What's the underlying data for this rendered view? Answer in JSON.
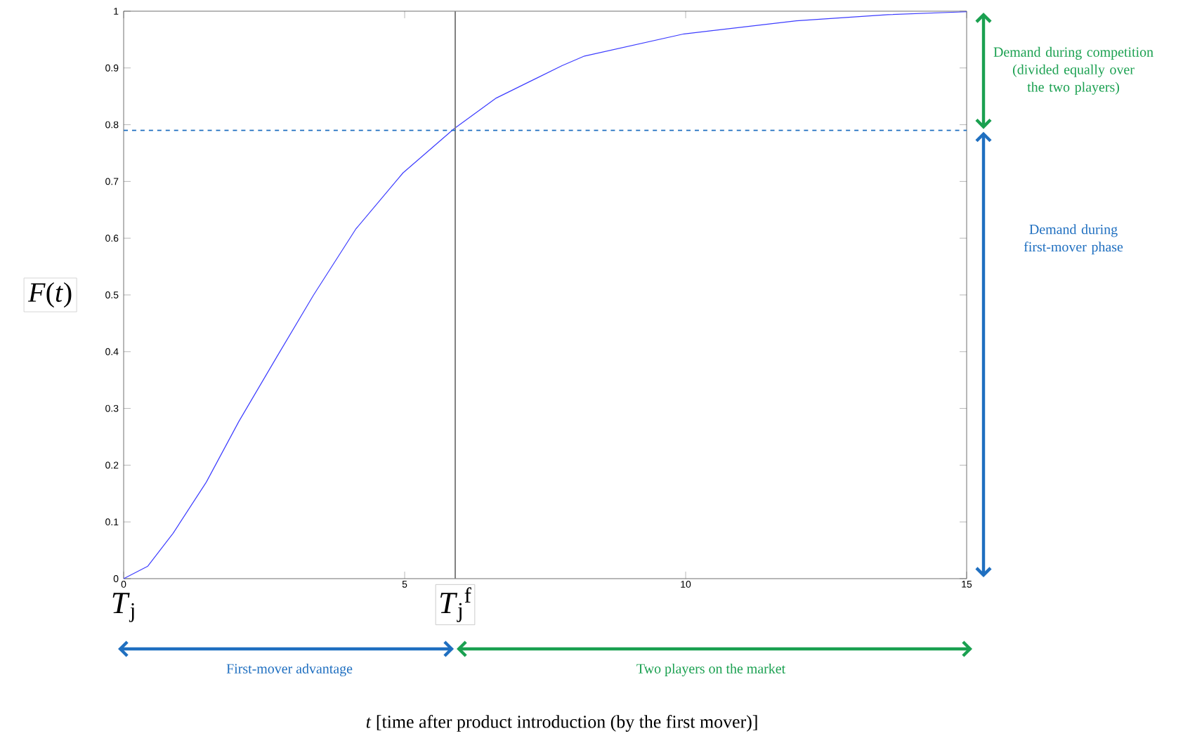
{
  "chart_data": {
    "type": "line",
    "ylabel": "*F*(*t*)",
    "x": [
      0,
      0.43,
      0.88,
      1.47,
      2.05,
      2.72,
      3.38,
      4.13,
      4.97,
      5.88,
      6.63,
      7.8,
      8.2,
      9.97,
      11.97,
      13.6,
      15
    ],
    "series": [
      {
        "color": "#3c3cff",
        "values": [
          0,
          0.022,
          0.08,
          0.17,
          0.277,
          0.39,
          0.5,
          0.616,
          0.715,
          0.793,
          0.847,
          0.904,
          0.921,
          0.96,
          0.983,
          0.994,
          0.999
        ]
      }
    ],
    "xlim": [
      0,
      15
    ],
    "ylim": [
      0,
      1
    ],
    "xticks": [
      0,
      5,
      10,
      15
    ],
    "yticks": [
      0,
      0.1,
      0.2,
      0.3,
      0.4,
      0.5,
      0.6,
      0.7,
      0.8,
      0.9,
      1
    ],
    "ref_lines": [
      {
        "axis": "x",
        "value": 5.9,
        "label": "*T*$_{j}$$^{f}$",
        "color": "#808080"
      },
      {
        "axis": "y",
        "value": 0.79,
        "color": "#1f6fc0",
        "line_style": "dashed"
      }
    ],
    "annotations": [
      "Demand during competition (divided equally over the two players)",
      "Demand during first-mover phase",
      "First-mover advantage",
      "Two players on the market",
      "*T*$_{j}$",
      "*t* [time after product introduction (by the first mover)]"
    ],
    "grid": false,
    "marker": "none",
    "line_style": "solid"
  }
}
